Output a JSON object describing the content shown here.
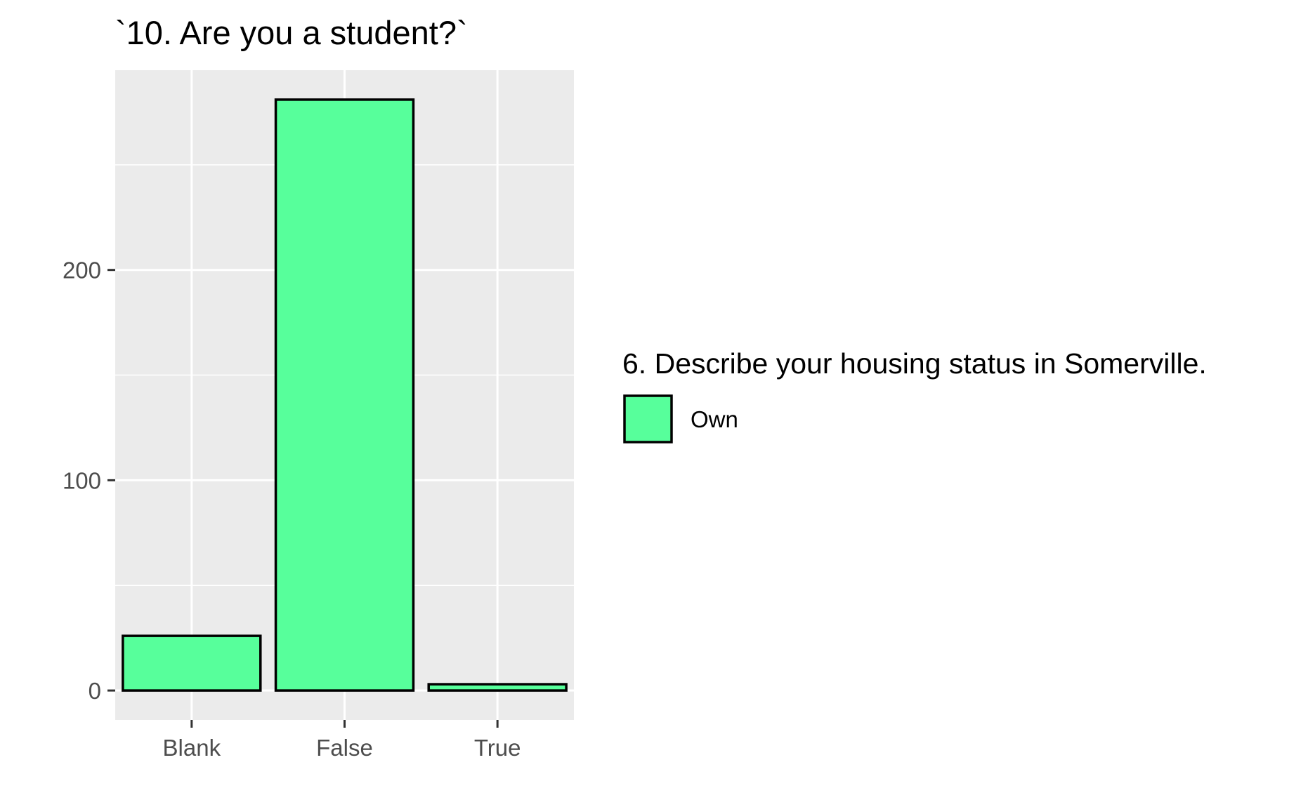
{
  "chart_data": {
    "type": "bar",
    "title": "`10. Are you a student?`",
    "xlabel": "",
    "ylabel": "",
    "categories": [
      "Blank",
      "False",
      "True"
    ],
    "series": [
      {
        "name": "Own",
        "values": [
          26,
          281,
          3
        ]
      }
    ],
    "ylim": [
      -14,
      295
    ],
    "yticks": [
      0,
      100,
      200
    ],
    "ytick_labels": [
      "0",
      "100",
      "200"
    ],
    "grid": true,
    "panel_background": "#ebebeb",
    "bar_fill": "#57ff9b",
    "bar_stroke": "#000000",
    "legend": {
      "title": "6. Describe your housing status in Somerville.",
      "entries": [
        "Own"
      ],
      "position": "right"
    }
  }
}
